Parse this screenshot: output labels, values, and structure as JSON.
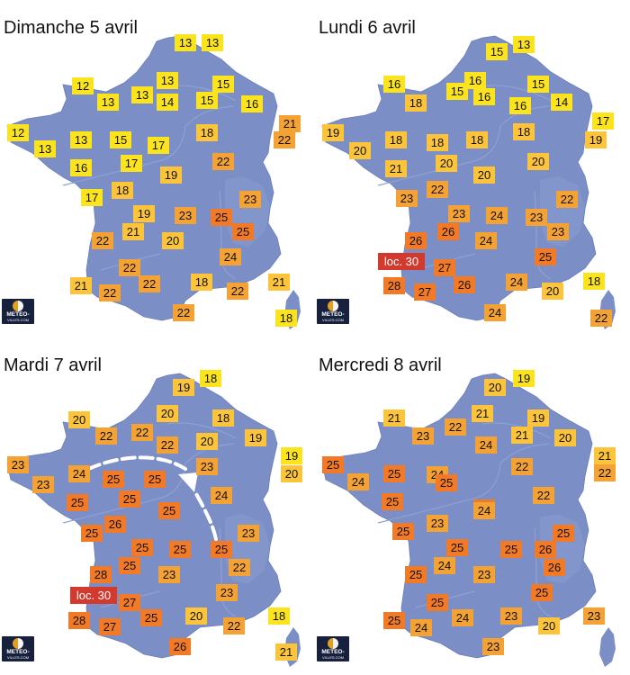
{
  "brand": {
    "line1": "METEO-",
    "line2": "VILLES.COM"
  },
  "colors": {
    "map_fill": "#7b8fc6",
    "rivers": "#8fa0d3",
    "yellow_temp": "#fbe31e",
    "light_orange_temp": "#fbc43a",
    "orange_temp": "#f4a233",
    "dark_orange_temp": "#f27a26",
    "local_max_label": "#d23a2e"
  },
  "panels": [
    {
      "title": "Dimanche 5 avril",
      "temps": [
        {
          "v": "13",
          "tier": 0
        },
        {
          "v": "13",
          "tier": 0
        },
        {
          "v": "12",
          "tier": 0
        },
        {
          "v": "13",
          "tier": 0
        },
        {
          "v": "13",
          "tier": 0
        },
        {
          "v": "13",
          "tier": 0
        },
        {
          "v": "14",
          "tier": 0
        },
        {
          "v": "15",
          "tier": 0
        },
        {
          "v": "16",
          "tier": 0
        },
        {
          "v": "15",
          "tier": 0
        },
        {
          "v": "21",
          "tier": 2
        },
        {
          "v": "12",
          "tier": 0
        },
        {
          "v": "13",
          "tier": 0
        },
        {
          "v": "13",
          "tier": 0
        },
        {
          "v": "15",
          "tier": 0
        },
        {
          "v": "17",
          "tier": 0
        },
        {
          "v": "18",
          "tier": 1
        },
        {
          "v": "22",
          "tier": 2
        },
        {
          "v": "16",
          "tier": 0
        },
        {
          "v": "17",
          "tier": 0
        },
        {
          "v": "19",
          "tier": 1
        },
        {
          "v": "22",
          "tier": 2
        },
        {
          "v": "17",
          "tier": 0
        },
        {
          "v": "18",
          "tier": 1
        },
        {
          "v": "23",
          "tier": 2
        },
        {
          "v": "19",
          "tier": 1
        },
        {
          "v": "23",
          "tier": 2
        },
        {
          "v": "25",
          "tier": 3
        },
        {
          "v": "22",
          "tier": 2
        },
        {
          "v": "21",
          "tier": 1
        },
        {
          "v": "20",
          "tier": 1
        },
        {
          "v": "25",
          "tier": 3
        },
        {
          "v": "24",
          "tier": 2
        },
        {
          "v": "22",
          "tier": 2
        },
        {
          "v": "22",
          "tier": 2
        },
        {
          "v": "18",
          "tier": 1
        },
        {
          "v": "21",
          "tier": 1
        },
        {
          "v": "22",
          "tier": 2
        },
        {
          "v": "22",
          "tier": 2
        },
        {
          "v": "21",
          "tier": 1
        },
        {
          "v": "18",
          "tier": 0
        },
        {
          "v": "22",
          "tier": 2
        },
        {
          "v": "20",
          "tier": 1
        }
      ],
      "local_max": null
    },
    {
      "title": "Lundi 6 avril",
      "temps": [
        {
          "v": "13",
          "tier": 0
        },
        {
          "v": "15",
          "tier": 0
        },
        {
          "v": "16",
          "tier": 0
        },
        {
          "v": "15",
          "tier": 0
        },
        {
          "v": "16",
          "tier": 0
        },
        {
          "v": "15",
          "tier": 0
        },
        {
          "v": "18",
          "tier": 1
        },
        {
          "v": "16",
          "tier": 0
        },
        {
          "v": "16",
          "tier": 0
        },
        {
          "v": "14",
          "tier": 0
        },
        {
          "v": "17",
          "tier": 0
        },
        {
          "v": "19",
          "tier": 1
        },
        {
          "v": "20",
          "tier": 1
        },
        {
          "v": "18",
          "tier": 1
        },
        {
          "v": "18",
          "tier": 1
        },
        {
          "v": "18",
          "tier": 1
        },
        {
          "v": "18",
          "tier": 1
        },
        {
          "v": "19",
          "tier": 1
        },
        {
          "v": "21",
          "tier": 1
        },
        {
          "v": "20",
          "tier": 1
        },
        {
          "v": "20",
          "tier": 1
        },
        {
          "v": "20",
          "tier": 1
        },
        {
          "v": "23",
          "tier": 2
        },
        {
          "v": "22",
          "tier": 2
        },
        {
          "v": "22",
          "tier": 2
        },
        {
          "v": "23",
          "tier": 2
        },
        {
          "v": "24",
          "tier": 2
        },
        {
          "v": "23",
          "tier": 2
        },
        {
          "v": "26",
          "tier": 3
        },
        {
          "v": "26",
          "tier": 3
        },
        {
          "v": "24",
          "tier": 2
        },
        {
          "v": "23",
          "tier": 2
        },
        {
          "v": "25",
          "tier": 3
        },
        {
          "v": "27",
          "tier": 3
        },
        {
          "v": "28",
          "tier": 3
        },
        {
          "v": "26",
          "tier": 3
        },
        {
          "v": "27",
          "tier": 3
        },
        {
          "v": "24",
          "tier": 2
        },
        {
          "v": "20",
          "tier": 1
        },
        {
          "v": "18",
          "tier": 0
        },
        {
          "v": "24",
          "tier": 2
        },
        {
          "v": "22",
          "tier": 2
        }
      ],
      "local_max": "loc. 30"
    },
    {
      "title": "Mardi 7 avril",
      "temps": [
        {
          "v": "18",
          "tier": 0
        },
        {
          "v": "19",
          "tier": 1
        },
        {
          "v": "20",
          "tier": 1
        },
        {
          "v": "20",
          "tier": 1
        },
        {
          "v": "18",
          "tier": 1
        },
        {
          "v": "22",
          "tier": 2
        },
        {
          "v": "22",
          "tier": 2
        },
        {
          "v": "20",
          "tier": 1
        },
        {
          "v": "22",
          "tier": 2
        },
        {
          "v": "19",
          "tier": 1
        },
        {
          "v": "19",
          "tier": 0
        },
        {
          "v": "23",
          "tier": 2
        },
        {
          "v": "20",
          "tier": 1
        },
        {
          "v": "23",
          "tier": 2
        },
        {
          "v": "24",
          "tier": 2
        },
        {
          "v": "25",
          "tier": 3
        },
        {
          "v": "25",
          "tier": 3
        },
        {
          "v": "23",
          "tier": 2
        },
        {
          "v": "25",
          "tier": 3
        },
        {
          "v": "25",
          "tier": 3
        },
        {
          "v": "24",
          "tier": 2
        },
        {
          "v": "25",
          "tier": 3
        },
        {
          "v": "26",
          "tier": 3
        },
        {
          "v": "25",
          "tier": 3
        },
        {
          "v": "25",
          "tier": 3
        },
        {
          "v": "23",
          "tier": 2
        },
        {
          "v": "25",
          "tier": 3
        },
        {
          "v": "25",
          "tier": 3
        },
        {
          "v": "25",
          "tier": 3
        },
        {
          "v": "22",
          "tier": 2
        },
        {
          "v": "28",
          "tier": 3
        },
        {
          "v": "23",
          "tier": 2
        },
        {
          "v": "23",
          "tier": 2
        },
        {
          "v": "27",
          "tier": 3
        },
        {
          "v": "25",
          "tier": 3
        },
        {
          "v": "20",
          "tier": 1
        },
        {
          "v": "22",
          "tier": 2
        },
        {
          "v": "18",
          "tier": 0
        },
        {
          "v": "28",
          "tier": 3
        },
        {
          "v": "27",
          "tier": 3
        },
        {
          "v": "26",
          "tier": 3
        },
        {
          "v": "21",
          "tier": 1
        }
      ],
      "local_max": "loc. 30"
    },
    {
      "title": "Mercredi 8 avril",
      "temps": [
        {
          "v": "19",
          "tier": 0
        },
        {
          "v": "20",
          "tier": 1
        },
        {
          "v": "21",
          "tier": 1
        },
        {
          "v": "21",
          "tier": 1
        },
        {
          "v": "22",
          "tier": 2
        },
        {
          "v": "19",
          "tier": 1
        },
        {
          "v": "23",
          "tier": 2
        },
        {
          "v": "21",
          "tier": 1
        },
        {
          "v": "20",
          "tier": 1
        },
        {
          "v": "24",
          "tier": 2
        },
        {
          "v": "21",
          "tier": 1
        },
        {
          "v": "22",
          "tier": 2
        },
        {
          "v": "25",
          "tier": 3
        },
        {
          "v": "24",
          "tier": 2
        },
        {
          "v": "25",
          "tier": 3
        },
        {
          "v": "24",
          "tier": 2
        },
        {
          "v": "22",
          "tier": 2
        },
        {
          "v": "25",
          "tier": 3
        },
        {
          "v": "25",
          "tier": 3
        },
        {
          "v": "25",
          "tier": 3
        },
        {
          "v": "22",
          "tier": 2
        },
        {
          "v": "24",
          "tier": 2
        },
        {
          "v": "25",
          "tier": 3
        },
        {
          "v": "23",
          "tier": 2
        },
        {
          "v": "25",
          "tier": 3
        },
        {
          "v": "25",
          "tier": 3
        },
        {
          "v": "26",
          "tier": 3
        },
        {
          "v": "25",
          "tier": 3
        },
        {
          "v": "26",
          "tier": 3
        },
        {
          "v": "25",
          "tier": 3
        },
        {
          "v": "23",
          "tier": 2
        },
        {
          "v": "24",
          "tier": 2
        },
        {
          "v": "25",
          "tier": 3
        },
        {
          "v": "25",
          "tier": 3
        },
        {
          "v": "25",
          "tier": 3
        },
        {
          "v": "24",
          "tier": 2
        },
        {
          "v": "24",
          "tier": 2
        },
        {
          "v": "23",
          "tier": 2
        },
        {
          "v": "20",
          "tier": 1
        },
        {
          "v": "23",
          "tier": 2
        },
        {
          "v": "23",
          "tier": 2
        }
      ],
      "local_max": null
    }
  ]
}
